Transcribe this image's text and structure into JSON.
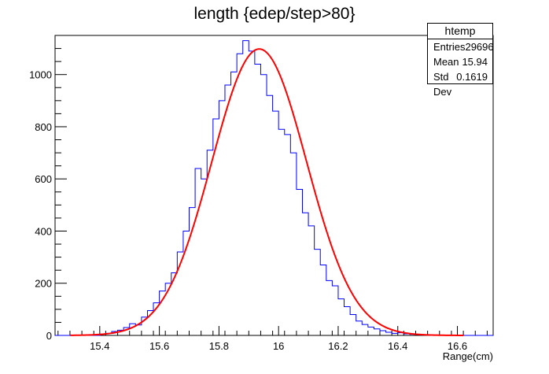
{
  "chart_data": {
    "type": "bar",
    "title": "length {edep/step>80}",
    "xlabel": "Range(cm)",
    "ylabel": "",
    "xlim": [
      15.25,
      16.72
    ],
    "ylim": [
      0,
      1150
    ],
    "x_ticks": [
      15.4,
      15.6,
      15.8,
      16.0,
      16.2,
      16.4,
      16.6
    ],
    "x_tick_labels": [
      "15.4",
      "15.6",
      "15.8",
      "16",
      "16.2",
      "16.4",
      "16.6"
    ],
    "y_ticks": [
      0,
      200,
      400,
      600,
      800,
      1000
    ],
    "y_tick_labels": [
      "0",
      "200",
      "400",
      "600",
      "800",
      "1000"
    ],
    "bin_width": 0.02,
    "series": [
      {
        "name": "htemp",
        "color": "#0000ff",
        "x_low": [
          15.4,
          15.42,
          15.44,
          15.46,
          15.48,
          15.5,
          15.52,
          15.54,
          15.56,
          15.58,
          15.6,
          15.62,
          15.64,
          15.66,
          15.68,
          15.7,
          15.72,
          15.74,
          15.76,
          15.78,
          15.8,
          15.82,
          15.84,
          15.86,
          15.88,
          15.9,
          15.92,
          15.94,
          15.96,
          15.98,
          16.0,
          16.02,
          16.04,
          16.06,
          16.08,
          16.1,
          16.12,
          16.14,
          16.16,
          16.18,
          16.2,
          16.22,
          16.24,
          16.26,
          16.28,
          16.3,
          16.32,
          16.34,
          16.36,
          16.38,
          16.4,
          16.42,
          16.44,
          16.46,
          16.48,
          16.5,
          16.52,
          16.54
        ],
        "values": [
          5,
          8,
          15,
          20,
          30,
          45,
          40,
          70,
          95,
          125,
          170,
          200,
          240,
          320,
          400,
          490,
          640,
          600,
          710,
          830,
          900,
          960,
          1010,
          1080,
          1130,
          1090,
          1040,
          1000,
          920,
          860,
          790,
          770,
          700,
          560,
          470,
          420,
          330,
          270,
          210,
          190,
          140,
          110,
          80,
          55,
          42,
          32,
          25,
          18,
          12,
          8,
          10,
          6,
          4,
          3,
          2,
          2,
          1,
          1
        ]
      },
      {
        "name": "fit",
        "color": "#ff0000",
        "fit": "gaus",
        "amplitude": 1098,
        "mean": 15.935,
        "sigma": 0.159
      }
    ]
  },
  "stats": {
    "title": "htemp",
    "rows": [
      {
        "label": "Entries",
        "value": "29696"
      },
      {
        "label": "Mean",
        "value": "15.94"
      },
      {
        "label": "Std Dev",
        "value": "0.1619"
      }
    ]
  }
}
